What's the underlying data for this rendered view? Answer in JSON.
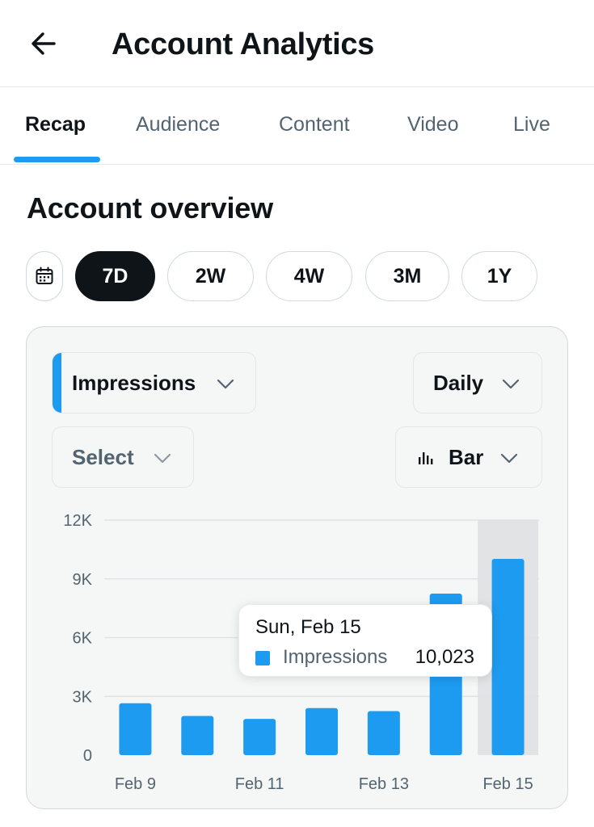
{
  "header": {
    "title": "Account Analytics",
    "back_icon": "arrow-left-icon"
  },
  "tabs": [
    {
      "label": "Recap",
      "active": true
    },
    {
      "label": "Audience",
      "active": false
    },
    {
      "label": "Content",
      "active": false
    },
    {
      "label": "Video",
      "active": false
    },
    {
      "label": "Live",
      "active": false
    }
  ],
  "overview": {
    "title": "Account overview",
    "calendar_icon": "calendar-icon",
    "ranges": [
      {
        "label": "7D",
        "active": true
      },
      {
        "label": "2W",
        "active": false
      },
      {
        "label": "4W",
        "active": false
      },
      {
        "label": "3M",
        "active": false
      },
      {
        "label": "1Y",
        "active": false
      }
    ]
  },
  "controls": {
    "metric": "Impressions",
    "interval": "Daily",
    "compare": "Select",
    "chart_type": "Bar",
    "chart_type_icon": "bar-chart-icon"
  },
  "colors": {
    "accent": "#1d9bf0",
    "dark": "#0f1419",
    "muted": "#536471",
    "highlight": "#e1e3e5"
  },
  "chart_data": {
    "type": "bar",
    "categories": [
      "Feb 9",
      "Feb 10",
      "Feb 11",
      "Feb 12",
      "Feb 13",
      "Feb 14",
      "Feb 15"
    ],
    "x_tick_labels": [
      "Feb 9",
      "Feb 11",
      "Feb 13",
      "Feb 15"
    ],
    "series": [
      {
        "name": "Impressions",
        "values": [
          2650,
          2000,
          1850,
          2400,
          2250,
          8250,
          10023
        ]
      }
    ],
    "ylim": [
      0,
      12000
    ],
    "y_ticks": [
      "0",
      "3K",
      "6K",
      "9K",
      "12K"
    ],
    "y_tick_values": [
      0,
      3000,
      6000,
      9000,
      12000
    ],
    "grid": true,
    "highlighted_category": "Feb 15",
    "tooltip": {
      "date": "Sun, Feb 15",
      "series": "Impressions",
      "value": "10,023"
    }
  }
}
